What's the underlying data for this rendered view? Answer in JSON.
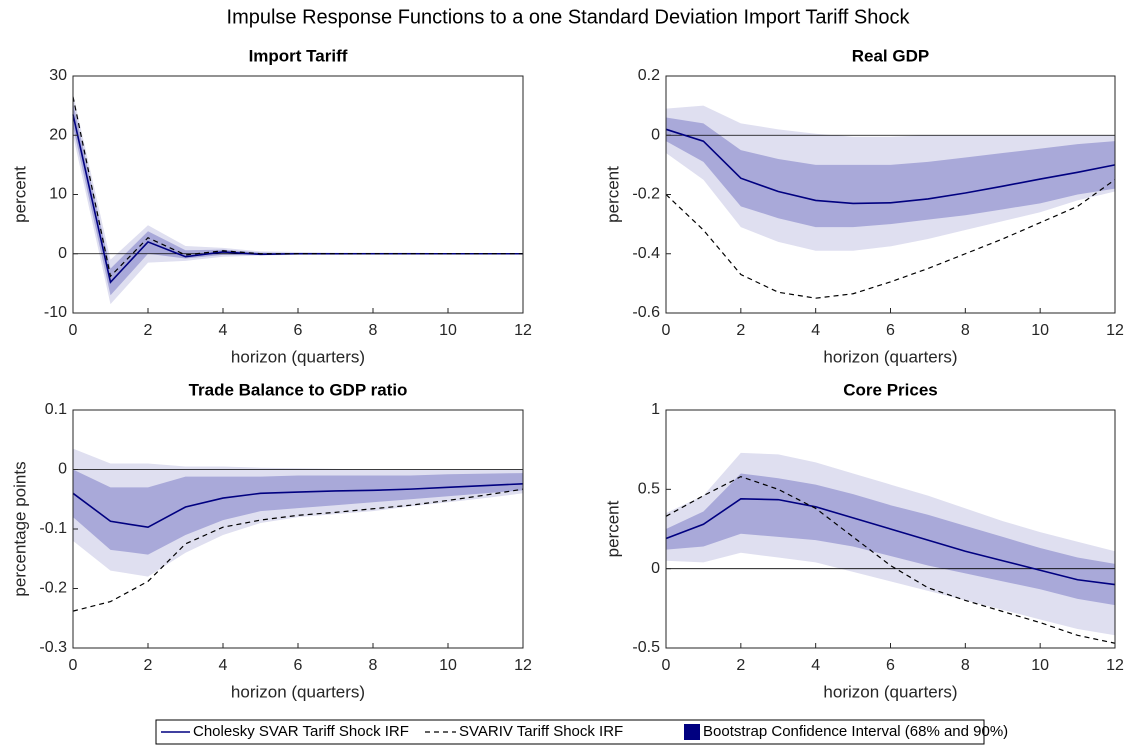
{
  "title": "Impulse Response Functions to a one Standard Deviation Import Tariff Shock",
  "chart_data": [
    {
      "type": "line",
      "title": "Import Tariff",
      "xlabel": "horizon (quarters)",
      "ylabel": "percent",
      "x": [
        0,
        1,
        2,
        3,
        4,
        5,
        6,
        7,
        8,
        9,
        10,
        11,
        12
      ],
      "xlim": [
        0,
        12
      ],
      "xticks": [
        0,
        2,
        4,
        6,
        8,
        10,
        12
      ],
      "ylim": [
        -10,
        30
      ],
      "yticks": [
        -10,
        0,
        10,
        20,
        30
      ],
      "series": [
        {
          "name": "Cholesky SVAR Tariff Shock IRF",
          "color": "#000080",
          "linestyle": "solid",
          "values": [
            23.5,
            -4.8,
            2,
            -0.5,
            0.3,
            -0.1,
            0,
            0,
            0,
            0,
            0,
            0,
            0
          ]
        },
        {
          "name": "SVARIV Tariff Shock IRF",
          "color": "#000000",
          "linestyle": "dashed",
          "values": [
            26.5,
            -3.8,
            2.7,
            -0.2,
            0.5,
            0,
            0,
            0,
            0,
            0,
            0,
            0,
            0
          ]
        }
      ],
      "bands_legend": {
        "name": "Bootstrap Confidence Interval (68% and 90%)",
        "color": "#000080"
      },
      "bands": [
        {
          "color": "#dfdff0",
          "lower": [
            20,
            -8.5,
            -1.5,
            -1.2,
            -0.5,
            -0.3,
            -0.2,
            -0.2,
            -0.1,
            -0.1,
            -0.1,
            -0.1,
            -0.1
          ],
          "upper": [
            27,
            -1,
            4.8,
            1.3,
            1,
            0.4,
            0.3,
            0.2,
            0.2,
            0.2,
            0.1,
            0.1,
            0.1
          ]
        },
        {
          "color": "#a9a9d9",
          "lower": [
            21.5,
            -7,
            0,
            -0.8,
            -0.2,
            -0.2,
            -0.1,
            -0.1,
            -0.1,
            0,
            0,
            0,
            0
          ],
          "upper": [
            25.5,
            -2.5,
            3.8,
            0.6,
            0.7,
            0.2,
            0.1,
            0.1,
            0.1,
            0.1,
            0.1,
            0.1,
            0.1
          ]
        }
      ]
    },
    {
      "type": "line",
      "title": "Real GDP",
      "xlabel": "horizon (quarters)",
      "ylabel": "percent",
      "x": [
        0,
        1,
        2,
        3,
        4,
        5,
        6,
        7,
        8,
        9,
        10,
        11,
        12
      ],
      "xlim": [
        0,
        12
      ],
      "xticks": [
        0,
        2,
        4,
        6,
        8,
        10,
        12
      ],
      "ylim": [
        -0.6,
        0.2
      ],
      "yticks": [
        -0.6,
        -0.4,
        -0.2,
        0,
        0.2
      ],
      "series": [
        {
          "color": "#000080",
          "linestyle": "solid",
          "values": [
            0.02,
            -0.02,
            -0.145,
            -0.19,
            -0.22,
            -0.23,
            -0.228,
            -0.215,
            -0.195,
            -0.172,
            -0.148,
            -0.125,
            -0.1
          ]
        },
        {
          "color": "#000000",
          "linestyle": "dashed",
          "values": [
            -0.2,
            -0.32,
            -0.47,
            -0.53,
            -0.55,
            -0.535,
            -0.495,
            -0.45,
            -0.4,
            -0.35,
            -0.295,
            -0.24,
            -0.15
          ]
        }
      ],
      "bands": [
        {
          "color": "#dfdff0",
          "lower": [
            -0.06,
            -0.15,
            -0.31,
            -0.36,
            -0.39,
            -0.39,
            -0.375,
            -0.35,
            -0.32,
            -0.29,
            -0.26,
            -0.22,
            -0.19
          ],
          "upper": [
            0.09,
            0.1,
            0.04,
            0.02,
            0.005,
            -0.005,
            -0.005,
            0,
            0,
            0,
            0,
            0,
            0
          ]
        },
        {
          "color": "#a9a9d9",
          "lower": [
            -0.02,
            -0.09,
            -0.24,
            -0.28,
            -0.31,
            -0.31,
            -0.3,
            -0.285,
            -0.27,
            -0.25,
            -0.23,
            -0.2,
            -0.18
          ],
          "upper": [
            0.06,
            0.04,
            -0.05,
            -0.08,
            -0.1,
            -0.1,
            -0.1,
            -0.09,
            -0.075,
            -0.06,
            -0.045,
            -0.03,
            -0.02
          ]
        }
      ]
    },
    {
      "type": "line",
      "title": "Trade Balance to GDP ratio",
      "xlabel": "horizon (quarters)",
      "ylabel": "percentage points",
      "x": [
        0,
        1,
        2,
        3,
        4,
        5,
        6,
        7,
        8,
        9,
        10,
        11,
        12
      ],
      "xlim": [
        0,
        12
      ],
      "xticks": [
        0,
        2,
        4,
        6,
        8,
        10,
        12
      ],
      "ylim": [
        -0.3,
        0.1
      ],
      "yticks": [
        -0.3,
        -0.2,
        -0.1,
        0,
        0.1
      ],
      "series": [
        {
          "color": "#000080",
          "linestyle": "solid",
          "values": [
            -0.04,
            -0.087,
            -0.097,
            -0.063,
            -0.048,
            -0.04,
            -0.038,
            -0.036,
            -0.035,
            -0.033,
            -0.03,
            -0.027,
            -0.024
          ]
        },
        {
          "color": "#000000",
          "linestyle": "dashed",
          "values": [
            -0.238,
            -0.222,
            -0.188,
            -0.125,
            -0.097,
            -0.085,
            -0.077,
            -0.072,
            -0.066,
            -0.06,
            -0.052,
            -0.043,
            -0.033
          ]
        }
      ],
      "bands": [
        {
          "color": "#dfdff0",
          "lower": [
            -0.12,
            -0.17,
            -0.18,
            -0.14,
            -0.11,
            -0.09,
            -0.08,
            -0.075,
            -0.07,
            -0.062,
            -0.055,
            -0.048,
            -0.04
          ],
          "upper": [
            0.035,
            0.01,
            0.01,
            0.005,
            0.005,
            0.003,
            0.002,
            0.001,
            0,
            0,
            0,
            0,
            0
          ]
        },
        {
          "color": "#a9a9d9",
          "lower": [
            -0.08,
            -0.135,
            -0.143,
            -0.11,
            -0.085,
            -0.07,
            -0.065,
            -0.06,
            -0.055,
            -0.05,
            -0.045,
            -0.04,
            -0.035
          ],
          "upper": [
            0,
            -0.03,
            -0.03,
            -0.012,
            -0.012,
            -0.012,
            -0.01,
            -0.01,
            -0.01,
            -0.01,
            -0.008,
            -0.007,
            -0.006
          ]
        }
      ]
    },
    {
      "type": "line",
      "title": "Core Prices",
      "xlabel": "horizon (quarters)",
      "ylabel": "percent",
      "x": [
        0,
        1,
        2,
        3,
        4,
        5,
        6,
        7,
        8,
        9,
        10,
        11,
        12
      ],
      "xlim": [
        0,
        12
      ],
      "xticks": [
        0,
        2,
        4,
        6,
        8,
        10,
        12
      ],
      "ylim": [
        -0.5,
        1
      ],
      "yticks": [
        -0.5,
        0,
        0.5,
        1
      ],
      "series": [
        {
          "color": "#000080",
          "linestyle": "solid",
          "values": [
            0.19,
            0.28,
            0.44,
            0.435,
            0.39,
            0.32,
            0.25,
            0.18,
            0.11,
            0.05,
            -0.01,
            -0.07,
            -0.1
          ]
        },
        {
          "color": "#000000",
          "linestyle": "dashed",
          "values": [
            0.33,
            0.46,
            0.58,
            0.5,
            0.38,
            0.2,
            0.02,
            -0.12,
            -0.2,
            -0.27,
            -0.34,
            -0.42,
            -0.47
          ]
        }
      ],
      "bands": [
        {
          "color": "#dfdff0",
          "lower": [
            0.05,
            0.04,
            0.1,
            0.07,
            0.04,
            -0.02,
            -0.08,
            -0.14,
            -0.2,
            -0.26,
            -0.32,
            -0.38,
            -0.42
          ],
          "upper": [
            0.35,
            0.46,
            0.73,
            0.72,
            0.67,
            0.6,
            0.53,
            0.46,
            0.38,
            0.3,
            0.23,
            0.17,
            0.11
          ]
        },
        {
          "color": "#a9a9d9",
          "lower": [
            0.12,
            0.14,
            0.22,
            0.2,
            0.18,
            0.14,
            0.08,
            0.02,
            -0.03,
            -0.08,
            -0.13,
            -0.19,
            -0.23
          ],
          "upper": [
            0.25,
            0.36,
            0.6,
            0.57,
            0.53,
            0.47,
            0.4,
            0.34,
            0.27,
            0.2,
            0.13,
            0.07,
            0.03
          ]
        }
      ]
    }
  ]
}
